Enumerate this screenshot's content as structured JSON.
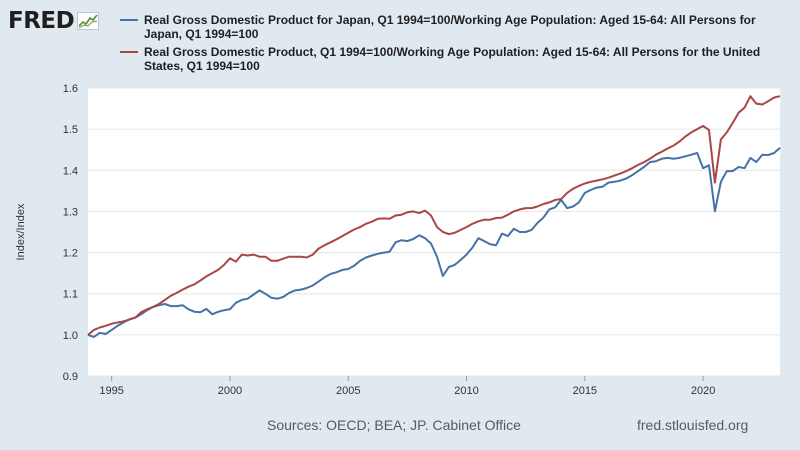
{
  "logo": {
    "text": "FRED",
    "icon": "chart-line-icon"
  },
  "footer": {
    "sources": "Sources: OECD; BEA; JP. Cabinet Office",
    "site": "fred.stlouisfed.org"
  },
  "chart_data": {
    "type": "line",
    "title": "",
    "xlabel": "",
    "ylabel": "Index/Index",
    "xlim": [
      1994.0,
      2023.25
    ],
    "ylim": [
      0.9,
      1.6
    ],
    "x_ticks": [
      "1995",
      "2000",
      "2005",
      "2010",
      "2015",
      "2020"
    ],
    "y_ticks": [
      "0.9",
      "1.0",
      "1.1",
      "1.2",
      "1.3",
      "1.4",
      "1.5",
      "1.6"
    ],
    "grid": "horizontal",
    "legend": "top",
    "series": [
      {
        "name": "Real Gross Domestic Product for Japan, Q1 1994=100/Working Age Population: Aged 15-64: All Persons for Japan, Q1 1994=100",
        "color": "#4572a7",
        "x": [
          1994.0,
          1994.25,
          1994.5,
          1994.75,
          1995.0,
          1995.25,
          1995.5,
          1995.75,
          1996.0,
          1996.25,
          1996.5,
          1996.75,
          1997.0,
          1997.25,
          1997.5,
          1997.75,
          1998.0,
          1998.25,
          1998.5,
          1998.75,
          1999.0,
          1999.25,
          1999.5,
          1999.75,
          2000.0,
          2000.25,
          2000.5,
          2000.75,
          2001.0,
          2001.25,
          2001.5,
          2001.75,
          2002.0,
          2002.25,
          2002.5,
          2002.75,
          2003.0,
          2003.25,
          2003.5,
          2003.75,
          2004.0,
          2004.25,
          2004.5,
          2004.75,
          2005.0,
          2005.25,
          2005.5,
          2005.75,
          2006.0,
          2006.25,
          2006.5,
          2006.75,
          2007.0,
          2007.25,
          2007.5,
          2007.75,
          2008.0,
          2008.25,
          2008.5,
          2008.75,
          2009.0,
          2009.25,
          2009.5,
          2009.75,
          2010.0,
          2010.25,
          2010.5,
          2010.75,
          2011.0,
          2011.25,
          2011.5,
          2011.75,
          2012.0,
          2012.25,
          2012.5,
          2012.75,
          2013.0,
          2013.25,
          2013.5,
          2013.75,
          2014.0,
          2014.25,
          2014.5,
          2014.75,
          2015.0,
          2015.25,
          2015.5,
          2015.75,
          2016.0,
          2016.25,
          2016.5,
          2016.75,
          2017.0,
          2017.25,
          2017.5,
          2017.75,
          2018.0,
          2018.25,
          2018.5,
          2018.75,
          2019.0,
          2019.25,
          2019.5,
          2019.75,
          2020.0,
          2020.25,
          2020.5,
          2020.75,
          2021.0,
          2021.25,
          2021.5,
          2021.75,
          2022.0,
          2022.25,
          2022.5,
          2022.75,
          2023.0,
          2023.25
        ],
        "values": [
          1.0,
          0.995,
          1.005,
          1.002,
          1.012,
          1.022,
          1.03,
          1.038,
          1.042,
          1.05,
          1.06,
          1.068,
          1.072,
          1.075,
          1.07,
          1.07,
          1.072,
          1.062,
          1.056,
          1.055,
          1.063,
          1.05,
          1.056,
          1.06,
          1.062,
          1.078,
          1.085,
          1.088,
          1.098,
          1.108,
          1.1,
          1.09,
          1.088,
          1.092,
          1.102,
          1.108,
          1.11,
          1.114,
          1.12,
          1.13,
          1.14,
          1.148,
          1.152,
          1.158,
          1.16,
          1.168,
          1.18,
          1.188,
          1.193,
          1.197,
          1.2,
          1.202,
          1.225,
          1.23,
          1.228,
          1.233,
          1.242,
          1.235,
          1.222,
          1.19,
          1.143,
          1.165,
          1.17,
          1.182,
          1.195,
          1.212,
          1.235,
          1.228,
          1.22,
          1.218,
          1.246,
          1.24,
          1.258,
          1.25,
          1.25,
          1.255,
          1.272,
          1.285,
          1.305,
          1.31,
          1.328,
          1.308,
          1.312,
          1.322,
          1.345,
          1.352,
          1.358,
          1.36,
          1.37,
          1.372,
          1.375,
          1.38,
          1.388,
          1.398,
          1.408,
          1.42,
          1.422,
          1.428,
          1.43,
          1.428,
          1.43,
          1.434,
          1.438,
          1.442,
          1.405,
          1.412,
          1.3,
          1.372,
          1.398,
          1.398,
          1.408,
          1.405,
          1.43,
          1.42,
          1.438,
          1.437,
          1.442,
          1.455
        ]
      },
      {
        "name": "Real Gross Domestic Product, Q1 1994=100/Working Age Population: Aged 15-64: All Persons for the United States, Q1 1994=100",
        "color": "#aa4643",
        "x": [
          1994.0,
          1994.25,
          1994.5,
          1994.75,
          1995.0,
          1995.25,
          1995.5,
          1995.75,
          1996.0,
          1996.25,
          1996.5,
          1996.75,
          1997.0,
          1997.25,
          1997.5,
          1997.75,
          1998.0,
          1998.25,
          1998.5,
          1998.75,
          1999.0,
          1999.25,
          1999.5,
          1999.75,
          2000.0,
          2000.25,
          2000.5,
          2000.75,
          2001.0,
          2001.25,
          2001.5,
          2001.75,
          2002.0,
          2002.25,
          2002.5,
          2002.75,
          2003.0,
          2003.25,
          2003.5,
          2003.75,
          2004.0,
          2004.25,
          2004.5,
          2004.75,
          2005.0,
          2005.25,
          2005.5,
          2005.75,
          2006.0,
          2006.25,
          2006.5,
          2006.75,
          2007.0,
          2007.25,
          2007.5,
          2007.75,
          2008.0,
          2008.25,
          2008.5,
          2008.75,
          2009.0,
          2009.25,
          2009.5,
          2009.75,
          2010.0,
          2010.25,
          2010.5,
          2010.75,
          2011.0,
          2011.25,
          2011.5,
          2011.75,
          2012.0,
          2012.25,
          2012.5,
          2012.75,
          2013.0,
          2013.25,
          2013.5,
          2013.75,
          2014.0,
          2014.25,
          2014.5,
          2014.75,
          2015.0,
          2015.25,
          2015.5,
          2015.75,
          2016.0,
          2016.25,
          2016.5,
          2016.75,
          2017.0,
          2017.25,
          2017.5,
          2017.75,
          2018.0,
          2018.25,
          2018.5,
          2018.75,
          2019.0,
          2019.25,
          2019.5,
          2019.75,
          2020.0,
          2020.25,
          2020.5,
          2020.75,
          2021.0,
          2021.25,
          2021.5,
          2021.75,
          2022.0,
          2022.25,
          2022.5,
          2022.75,
          2023.0,
          2023.25
        ],
        "values": [
          1.0,
          1.012,
          1.018,
          1.022,
          1.027,
          1.03,
          1.033,
          1.037,
          1.042,
          1.055,
          1.062,
          1.068,
          1.075,
          1.085,
          1.095,
          1.102,
          1.11,
          1.117,
          1.123,
          1.132,
          1.142,
          1.15,
          1.158,
          1.17,
          1.186,
          1.178,
          1.195,
          1.193,
          1.195,
          1.19,
          1.19,
          1.18,
          1.18,
          1.185,
          1.19,
          1.19,
          1.19,
          1.188,
          1.195,
          1.21,
          1.218,
          1.225,
          1.232,
          1.24,
          1.248,
          1.256,
          1.262,
          1.27,
          1.275,
          1.282,
          1.283,
          1.282,
          1.29,
          1.292,
          1.298,
          1.3,
          1.296,
          1.302,
          1.29,
          1.262,
          1.25,
          1.245,
          1.248,
          1.255,
          1.262,
          1.27,
          1.276,
          1.28,
          1.28,
          1.284,
          1.285,
          1.292,
          1.3,
          1.305,
          1.308,
          1.308,
          1.312,
          1.318,
          1.322,
          1.328,
          1.33,
          1.345,
          1.355,
          1.362,
          1.368,
          1.372,
          1.375,
          1.378,
          1.382,
          1.387,
          1.392,
          1.398,
          1.405,
          1.413,
          1.42,
          1.428,
          1.438,
          1.445,
          1.453,
          1.46,
          1.47,
          1.482,
          1.492,
          1.5,
          1.508,
          1.498,
          1.37,
          1.475,
          1.492,
          1.515,
          1.54,
          1.552,
          1.58,
          1.562,
          1.56,
          1.568,
          1.577,
          1.58
        ]
      }
    ]
  }
}
